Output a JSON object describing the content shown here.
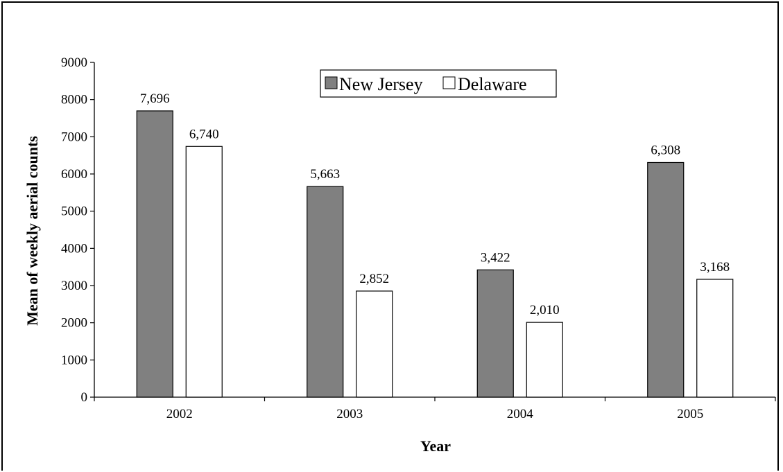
{
  "chart_data": {
    "type": "bar",
    "title": "",
    "xlabel": "Year",
    "ylabel": "Mean of weekly aerial counts",
    "categories": [
      "2002",
      "2003",
      "2004",
      "2005"
    ],
    "ylim": [
      0,
      9000
    ],
    "yticks": [
      0,
      1000,
      2000,
      3000,
      4000,
      5000,
      6000,
      7000,
      8000,
      9000
    ],
    "grid": false,
    "legend_position": "top-center",
    "series": [
      {
        "name": "New Jersey",
        "values": [
          7696,
          5663,
          3422,
          6308
        ],
        "labels": [
          "7,696",
          "5,663",
          "3,422",
          "6,308"
        ],
        "color": "#808080"
      },
      {
        "name": "Delaware",
        "values": [
          6740,
          2852,
          2010,
          3168
        ],
        "labels": [
          "6,740",
          "2,852",
          "2,010",
          "3,168"
        ],
        "color": "#ffffff"
      }
    ]
  }
}
